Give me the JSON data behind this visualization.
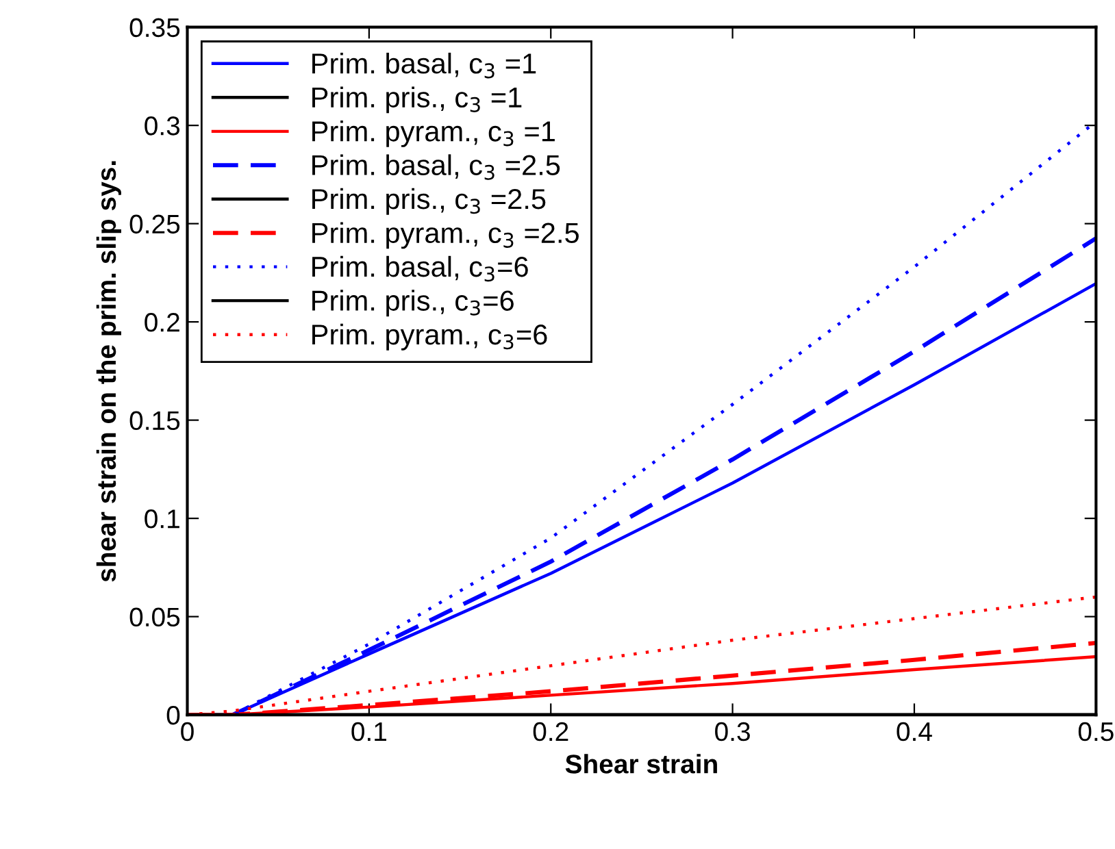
{
  "chart_data": {
    "type": "line",
    "xlabel": "Shear strain",
    "ylabel": "shear strain on the prim. slip sys.",
    "x": [
      0,
      0.025,
      0.1,
      0.2,
      0.3,
      0.4,
      0.5
    ],
    "xlim": [
      0,
      0.5
    ],
    "xticks": [
      0,
      0.1,
      0.2,
      0.3,
      0.4,
      0.5
    ],
    "ylim": [
      0,
      0.35
    ],
    "yticks": [
      0,
      0.05,
      0.1,
      0.15,
      0.2,
      0.25,
      0.3,
      0.35
    ],
    "grid": false,
    "legend": "top left",
    "series": [
      {
        "name": "Prim. basal, c$_{3}$ =1",
        "color": "#0000ff",
        "line_style": "solid",
        "values": [
          0,
          0,
          0.031,
          0.072,
          0.118,
          0.168,
          0.2195
        ]
      },
      {
        "name": "Prim. pris., c$_{3}$ =1",
        "color": "#000000",
        "line_style": "solid",
        "values": [
          0,
          0,
          0,
          0,
          0,
          0,
          0
        ]
      },
      {
        "name": "Prim. pyram., c$_{3}$ =1",
        "color": "#ff0000",
        "line_style": "solid",
        "values": [
          0,
          0,
          0.004,
          0.01,
          0.016,
          0.023,
          0.0296
        ]
      },
      {
        "name": "Prim. basal, c$_{3}$ =2.5",
        "color": "#0000ff",
        "line_style": "dashed",
        "values": [
          0,
          0,
          0.033,
          0.078,
          0.13,
          0.185,
          0.2425
        ]
      },
      {
        "name": "Prim. pris., c$_{3}$ =2.5",
        "color": "#000000",
        "line_style": "solid",
        "values": [
          0,
          0,
          0,
          0,
          0,
          0,
          0
        ]
      },
      {
        "name": "Prim. pyram., c$_{3}$ =2.5",
        "color": "#ff0000",
        "line_style": "dashed",
        "values": [
          0,
          0,
          0.005,
          0.012,
          0.02,
          0.028,
          0.0366
        ]
      },
      {
        "name": "Prim. basal, c$_{3}$=6",
        "color": "#0000ff",
        "line_style": "dotted",
        "values": [
          0,
          0,
          0.036,
          0.09,
          0.158,
          0.228,
          0.302
        ]
      },
      {
        "name": "Prim. pris., c$_{3}$=6",
        "color": "#000000",
        "line_style": "solid",
        "values": [
          0,
          0,
          0,
          0,
          0,
          0,
          0
        ]
      },
      {
        "name": "Prim. pyram., c$_{3}$=6",
        "color": "#ff0000",
        "line_style": "dotted",
        "values": [
          0,
          0.002,
          0.012,
          0.025,
          0.038,
          0.049,
          0.06
        ]
      }
    ]
  }
}
